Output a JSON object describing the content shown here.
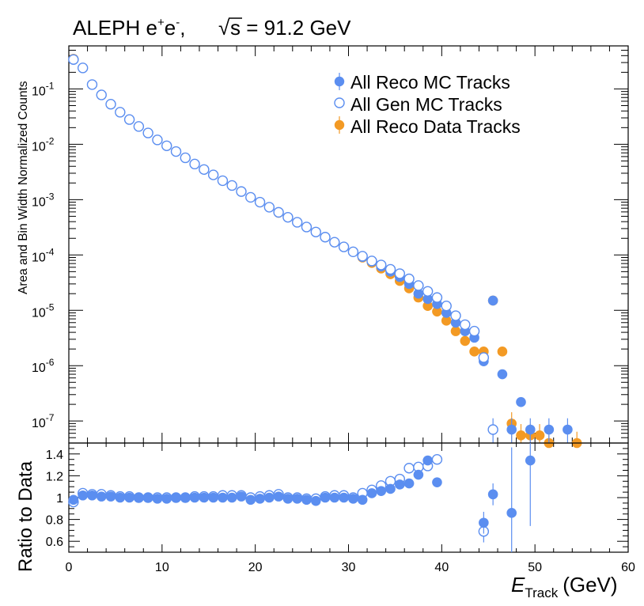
{
  "title": {
    "experiment": "ALEPH e",
    "sup_plus": "+",
    "e_minus": "e",
    "sup_minus": "-",
    "comma": ",",
    "sqrt_sym": "√",
    "energy_text": "s = 91.2 GeV"
  },
  "colors": {
    "reco_mc": "#5b8ef0",
    "gen_mc": "#5b8ef0",
    "reco_data": "#f39a24",
    "axis": "#000000"
  },
  "chart_data": [
    {
      "type": "scatter",
      "ylabel": "Area and Bin Width Normalized Counts",
      "yscale": "log",
      "ylim": [
        4e-08,
        0.6
      ],
      "xlim": [
        0,
        60
      ],
      "ytick_labels": [
        {
          "base": "10",
          "exp": "-1",
          "v": 0.1
        },
        {
          "base": "10",
          "exp": "-2",
          "v": 0.01
        },
        {
          "base": "10",
          "exp": "-3",
          "v": 0.001
        },
        {
          "base": "10",
          "exp": "-4",
          "v": 0.0001
        },
        {
          "base": "10",
          "exp": "-5",
          "v": 1e-05
        },
        {
          "base": "10",
          "exp": "-6",
          "v": 1e-06
        },
        {
          "base": "10",
          "exp": "-7",
          "v": 1e-07
        }
      ],
      "legend_position": "top-right",
      "series": [
        {
          "name": "All Reco MC Tracks",
          "marker": "filled-circle",
          "color": "#5b8ef0",
          "x": [
            0.5,
            1.5,
            2.5,
            3.5,
            4.5,
            5.5,
            6.5,
            7.5,
            8.5,
            9.5,
            10.5,
            11.5,
            12.5,
            13.5,
            14.5,
            15.5,
            16.5,
            17.5,
            18.5,
            19.5,
            20.5,
            21.5,
            22.5,
            23.5,
            24.5,
            25.5,
            26.5,
            27.5,
            28.5,
            29.5,
            30.5,
            31.5,
            32.5,
            33.5,
            34.5,
            35.5,
            36.5,
            37.5,
            38.5,
            39.5,
            40.5,
            41.5,
            42.5,
            43.5,
            44.5,
            45.5,
            46.5,
            47.5,
            48.5,
            49.5,
            51.5,
            53.5
          ],
          "y": [
            0.34,
            0.24,
            0.12,
            0.078,
            0.053,
            0.038,
            0.028,
            0.021,
            0.016,
            0.012,
            0.0094,
            0.0074,
            0.0057,
            0.0044,
            0.0035,
            0.0028,
            0.0022,
            0.0018,
            0.0014,
            0.0011,
            0.0009,
            0.00073,
            0.00059,
            0.00048,
            0.00039,
            0.00032,
            0.00026,
            0.00021,
            0.00017,
            0.00014,
            0.000114,
            9.2e-05,
            7.6e-05,
            6.2e-05,
            5e-05,
            4e-05,
            3e-05,
            2e-05,
            1.6e-05,
            1.3e-05,
            9e-06,
            6e-06,
            4.2e-06,
            3.2e-06,
            1.2e-06,
            1.5e-05,
            7e-07,
            7e-08,
            2.2e-07,
            7e-08,
            7e-08,
            7e-08
          ]
        },
        {
          "name": "All Gen MC Tracks",
          "marker": "open-circle",
          "color": "#5b8ef0",
          "x": [
            0.5,
            1.5,
            2.5,
            3.5,
            4.5,
            5.5,
            6.5,
            7.5,
            8.5,
            9.5,
            10.5,
            11.5,
            12.5,
            13.5,
            14.5,
            15.5,
            16.5,
            17.5,
            18.5,
            19.5,
            20.5,
            21.5,
            22.5,
            23.5,
            24.5,
            25.5,
            26.5,
            27.5,
            28.5,
            29.5,
            30.5,
            31.5,
            32.5,
            33.5,
            34.5,
            35.5,
            36.5,
            37.5,
            38.5,
            39.5,
            40.5,
            41.5,
            42.5,
            43.5,
            44.5,
            45.5
          ],
          "y": [
            0.34,
            0.24,
            0.12,
            0.078,
            0.053,
            0.038,
            0.028,
            0.021,
            0.016,
            0.012,
            0.0094,
            0.0074,
            0.0057,
            0.0044,
            0.0035,
            0.0028,
            0.0022,
            0.0018,
            0.0014,
            0.0011,
            0.0009,
            0.00073,
            0.00059,
            0.00048,
            0.00039,
            0.00032,
            0.00026,
            0.00021,
            0.00017,
            0.00014,
            0.000114,
            9.5e-05,
            7.8e-05,
            6.6e-05,
            5.5e-05,
            4.6e-05,
            3.7e-05,
            2.8e-05,
            2.2e-05,
            1.7e-05,
            1.2e-05,
            8e-06,
            5.5e-06,
            4.2e-06,
            1.4e-06,
            7e-08
          ]
        },
        {
          "name": "All Reco Data Tracks",
          "marker": "filled-circle",
          "color": "#f39a24",
          "x": [
            0.5,
            1.5,
            2.5,
            3.5,
            4.5,
            5.5,
            6.5,
            7.5,
            8.5,
            9.5,
            10.5,
            11.5,
            12.5,
            13.5,
            14.5,
            15.5,
            16.5,
            17.5,
            18.5,
            19.5,
            20.5,
            21.5,
            22.5,
            23.5,
            24.5,
            25.5,
            26.5,
            27.5,
            28.5,
            29.5,
            30.5,
            31.5,
            32.5,
            33.5,
            34.5,
            35.5,
            36.5,
            37.5,
            38.5,
            39.5,
            40.5,
            41.5,
            42.5,
            43.5,
            44.5,
            45.5,
            46.5,
            47.5,
            48.5,
            49.5,
            50.5,
            51.5,
            54.5
          ],
          "y": [
            0.35,
            0.24,
            0.12,
            0.078,
            0.053,
            0.038,
            0.028,
            0.021,
            0.016,
            0.012,
            0.0094,
            0.0074,
            0.0057,
            0.0044,
            0.0035,
            0.0028,
            0.0022,
            0.0018,
            0.0014,
            0.0011,
            0.0009,
            0.00073,
            0.00058,
            0.00048,
            0.00039,
            0.00032,
            0.00026,
            0.00021,
            0.00017,
            0.00014,
            0.000114,
            9e-05,
            7.2e-05,
            5.7e-05,
            4.5e-05,
            3.4e-05,
            2.5e-05,
            1.7e-05,
            1.2e-05,
            9.5e-06,
            6.5e-06,
            4.2e-06,
            2.8e-06,
            1.8e-06,
            1.8e-06,
            1.5e-05,
            1.8e-06,
            9e-08,
            5.5e-08,
            5.5e-08,
            5.5e-08,
            4e-08,
            4e-08
          ]
        }
      ]
    },
    {
      "type": "scatter",
      "ylabel": "Ratio to Data",
      "xlabel_main": "E",
      "xlabel_sub": "Track",
      "xlabel_unit": "(GeV)",
      "xlim": [
        0,
        60
      ],
      "ylim": [
        0.5,
        1.5
      ],
      "xtick_labels": [
        "0",
        "10",
        "20",
        "30",
        "40",
        "50",
        "60"
      ],
      "ytick_labels": [
        "1.4",
        "1.2",
        "1",
        "0.8",
        "0.6"
      ],
      "series": [
        {
          "name": "All Reco MC Tracks",
          "marker": "filled-circle",
          "color": "#5b8ef0",
          "x": [
            0.5,
            1.5,
            2.5,
            3.5,
            4.5,
            5.5,
            6.5,
            7.5,
            8.5,
            9.5,
            10.5,
            11.5,
            12.5,
            13.5,
            14.5,
            15.5,
            16.5,
            17.5,
            18.5,
            19.5,
            20.5,
            21.5,
            22.5,
            23.5,
            24.5,
            25.5,
            26.5,
            27.5,
            28.5,
            29.5,
            30.5,
            31.5,
            32.5,
            33.5,
            34.5,
            35.5,
            36.5,
            37.5,
            38.5,
            39.5,
            44.5,
            45.5,
            47.5,
            49.5
          ],
          "y": [
            0.98,
            1.02,
            1.02,
            1.01,
            1.01,
            1.0,
            1.0,
            1.0,
            1.0,
            0.99,
            0.99,
            1.0,
            1.0,
            1.0,
            1.0,
            1.0,
            1.0,
            1.0,
            1.01,
            0.98,
            0.99,
            1.0,
            1.01,
            0.99,
            0.99,
            0.98,
            0.97,
            1.0,
            1.0,
            1.0,
            0.99,
            0.98,
            1.04,
            1.06,
            1.08,
            1.12,
            1.13,
            1.21,
            1.34,
            1.14,
            0.77,
            1.03,
            0.86,
            1.34
          ]
        },
        {
          "name": "All Gen MC Tracks",
          "marker": "open-circle",
          "color": "#5b8ef0",
          "x": [
            0.5,
            1.5,
            2.5,
            3.5,
            4.5,
            5.5,
            6.5,
            7.5,
            8.5,
            9.5,
            10.5,
            11.5,
            12.5,
            13.5,
            14.5,
            15.5,
            16.5,
            17.5,
            18.5,
            19.5,
            20.5,
            21.5,
            22.5,
            23.5,
            24.5,
            25.5,
            26.5,
            27.5,
            28.5,
            29.5,
            30.5,
            31.5,
            32.5,
            33.5,
            34.5,
            35.5,
            36.5,
            37.5,
            38.5,
            39.5,
            44.5
          ],
          "y": [
            0.96,
            1.04,
            1.03,
            1.03,
            1.02,
            1.01,
            1.01,
            1.0,
            1.0,
            1.0,
            1.0,
            1.0,
            1.0,
            1.01,
            1.01,
            1.01,
            1.02,
            1.02,
            1.02,
            1.0,
            1.01,
            1.02,
            1.03,
            1.0,
            1.0,
            0.99,
            0.99,
            1.01,
            1.02,
            1.02,
            1.0,
            1.04,
            1.07,
            1.11,
            1.15,
            1.17,
            1.27,
            1.28,
            1.29,
            1.35,
            0.69
          ]
        }
      ]
    }
  ]
}
